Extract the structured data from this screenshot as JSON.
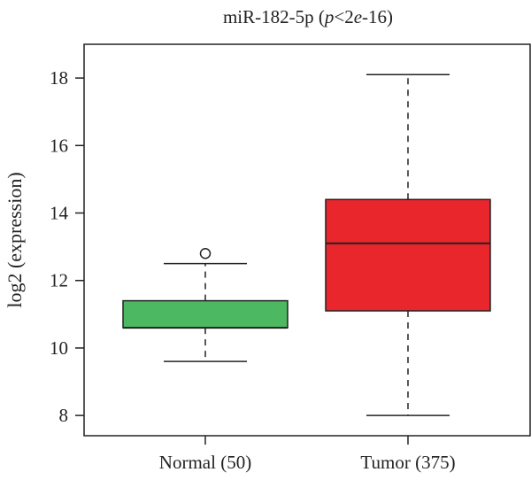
{
  "chart_data": {
    "type": "box",
    "title_main": "miR-182-5p (",
    "title_p": "p",
    "title_mid": "<2",
    "title_e": "e",
    "title_end": "-16)",
    "ylabel": "log2 (expression)",
    "ylim": [
      7.4,
      19
    ],
    "yticks": [
      "8",
      "10",
      "12",
      "14",
      "16",
      "18"
    ],
    "categories": [
      "Normal (50)",
      "Tumor (375)"
    ],
    "boxes": [
      {
        "category": "Normal (50)",
        "whisker_low": 9.6,
        "q1": 10.6,
        "median": 10.6,
        "q3": 11.4,
        "whisker_high": 12.5,
        "outliers": [
          12.8
        ],
        "color": "#4db862"
      },
      {
        "category": "Tumor (375)",
        "whisker_low": 8.0,
        "q1": 11.1,
        "median": 13.1,
        "q3": 14.4,
        "whisker_high": 18.1,
        "outliers": [],
        "color": "#e8262c"
      }
    ],
    "grid": false,
    "legend": "none"
  }
}
